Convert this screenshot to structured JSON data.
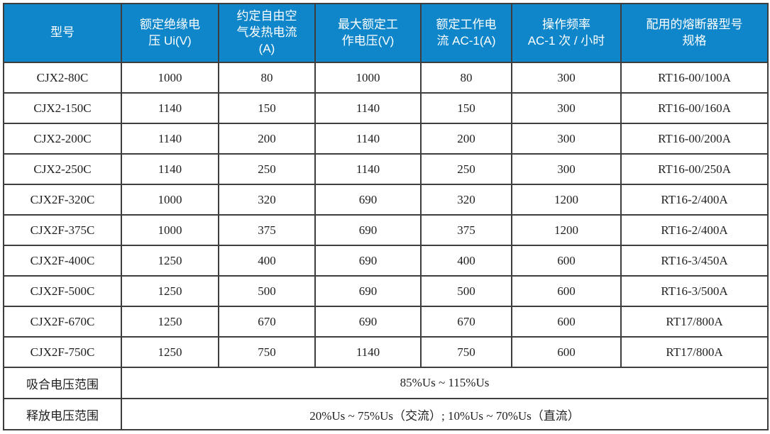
{
  "table": {
    "headers": [
      "型号",
      "额定绝缘电\n压 Ui(V)",
      "约定自由空\n气发热电流\n(A)",
      "最大额定工\n作电压(V)",
      "额定工作电\n流 AC-1(A)",
      "操作频率\nAC-1 次 / 小时",
      "配用的熔断器型号\n规格"
    ],
    "rows": [
      [
        "CJX2-80C",
        "1000",
        "80",
        "1000",
        "80",
        "300",
        "RT16-00/100A"
      ],
      [
        "CJX2-150C",
        "1140",
        "150",
        "1140",
        "150",
        "300",
        "RT16-00/160A"
      ],
      [
        "CJX2-200C",
        "1140",
        "200",
        "1140",
        "200",
        "300",
        "RT16-00/200A"
      ],
      [
        "CJX2-250C",
        "1140",
        "250",
        "1140",
        "250",
        "300",
        "RT16-00/250A"
      ],
      [
        "CJX2F-320C",
        "1000",
        "320",
        "690",
        "320",
        "1200",
        "RT16-2/400A"
      ],
      [
        "CJX2F-375C",
        "1000",
        "375",
        "690",
        "375",
        "1200",
        "RT16-2/400A"
      ],
      [
        "CJX2F-400C",
        "1250",
        "400",
        "690",
        "400",
        "600",
        "RT16-3/450A"
      ],
      [
        "CJX2F-500C",
        "1250",
        "500",
        "690",
        "500",
        "600",
        "RT16-3/500A"
      ],
      [
        "CJX2F-670C",
        "1250",
        "670",
        "690",
        "670",
        "600",
        "RT17/800A"
      ],
      [
        "CJX2F-750C",
        "1250",
        "750",
        "1140",
        "750",
        "600",
        "RT17/800A"
      ]
    ],
    "footer_rows": [
      {
        "label": "吸合电压范围",
        "value": "85%Us ~ 115%Us"
      },
      {
        "label": "释放电压范围",
        "value": "20%Us ~ 75%Us（交流）; 10%Us ~ 70%Us（直流）"
      }
    ],
    "colors": {
      "header_bg": "#0F86CA",
      "header_text": "#FFFFFF",
      "body_text": "#1F1F1F",
      "grid_border": "#3D3D3D",
      "outer_border": "#1C1C1C"
    }
  }
}
